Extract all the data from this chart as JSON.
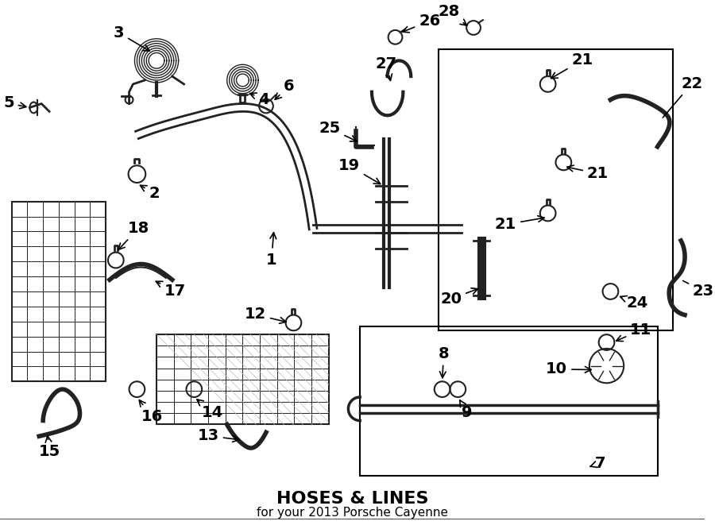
{
  "title": "HOSES & LINES",
  "subtitle": "for your 2013 Porsche Cayenne",
  "bg_color": "#ffffff",
  "line_color": "#000000",
  "part_numbers": [
    1,
    2,
    3,
    4,
    5,
    6,
    7,
    8,
    9,
    10,
    11,
    12,
    13,
    14,
    15,
    16,
    17,
    18,
    19,
    20,
    21,
    22,
    23,
    24,
    25,
    26,
    27,
    28
  ],
  "figsize": [
    9.0,
    6.61
  ],
  "dpi": 100
}
